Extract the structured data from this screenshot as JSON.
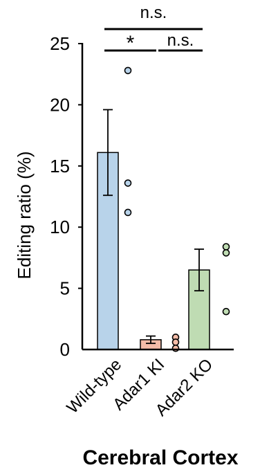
{
  "chart_data": {
    "type": "bar",
    "title": "Cerebral Cortex",
    "ylabel": "Editing ratio (%)",
    "ylim": [
      0,
      25
    ],
    "yticks": [
      "0",
      "5",
      "10",
      "15",
      "20",
      "25"
    ],
    "categories": [
      "Wild-type",
      "Adar1 KI",
      "Adar2 KO"
    ],
    "bar_colors": [
      "#b8d3ea",
      "#f4bca8",
      "#bfdcb3"
    ],
    "series": [
      {
        "values": [
          16.1,
          0.8,
          6.5
        ],
        "error": [
          3.5,
          0.3,
          1.7
        ],
        "points": [
          [
            22.8,
            13.6,
            11.2
          ],
          [
            1.0,
            0.6,
            0.1
          ],
          [
            8.4,
            7.9,
            3.1
          ]
        ]
      }
    ],
    "significance": [
      {
        "from": "Wild-type",
        "to": "Adar1 KI",
        "label": "*"
      },
      {
        "from": "Adar1 KI",
        "to": "Adar2 KO",
        "label": "n.s."
      },
      {
        "from": "Wild-type",
        "to": "Adar2 KO",
        "label": "n.s."
      }
    ]
  }
}
